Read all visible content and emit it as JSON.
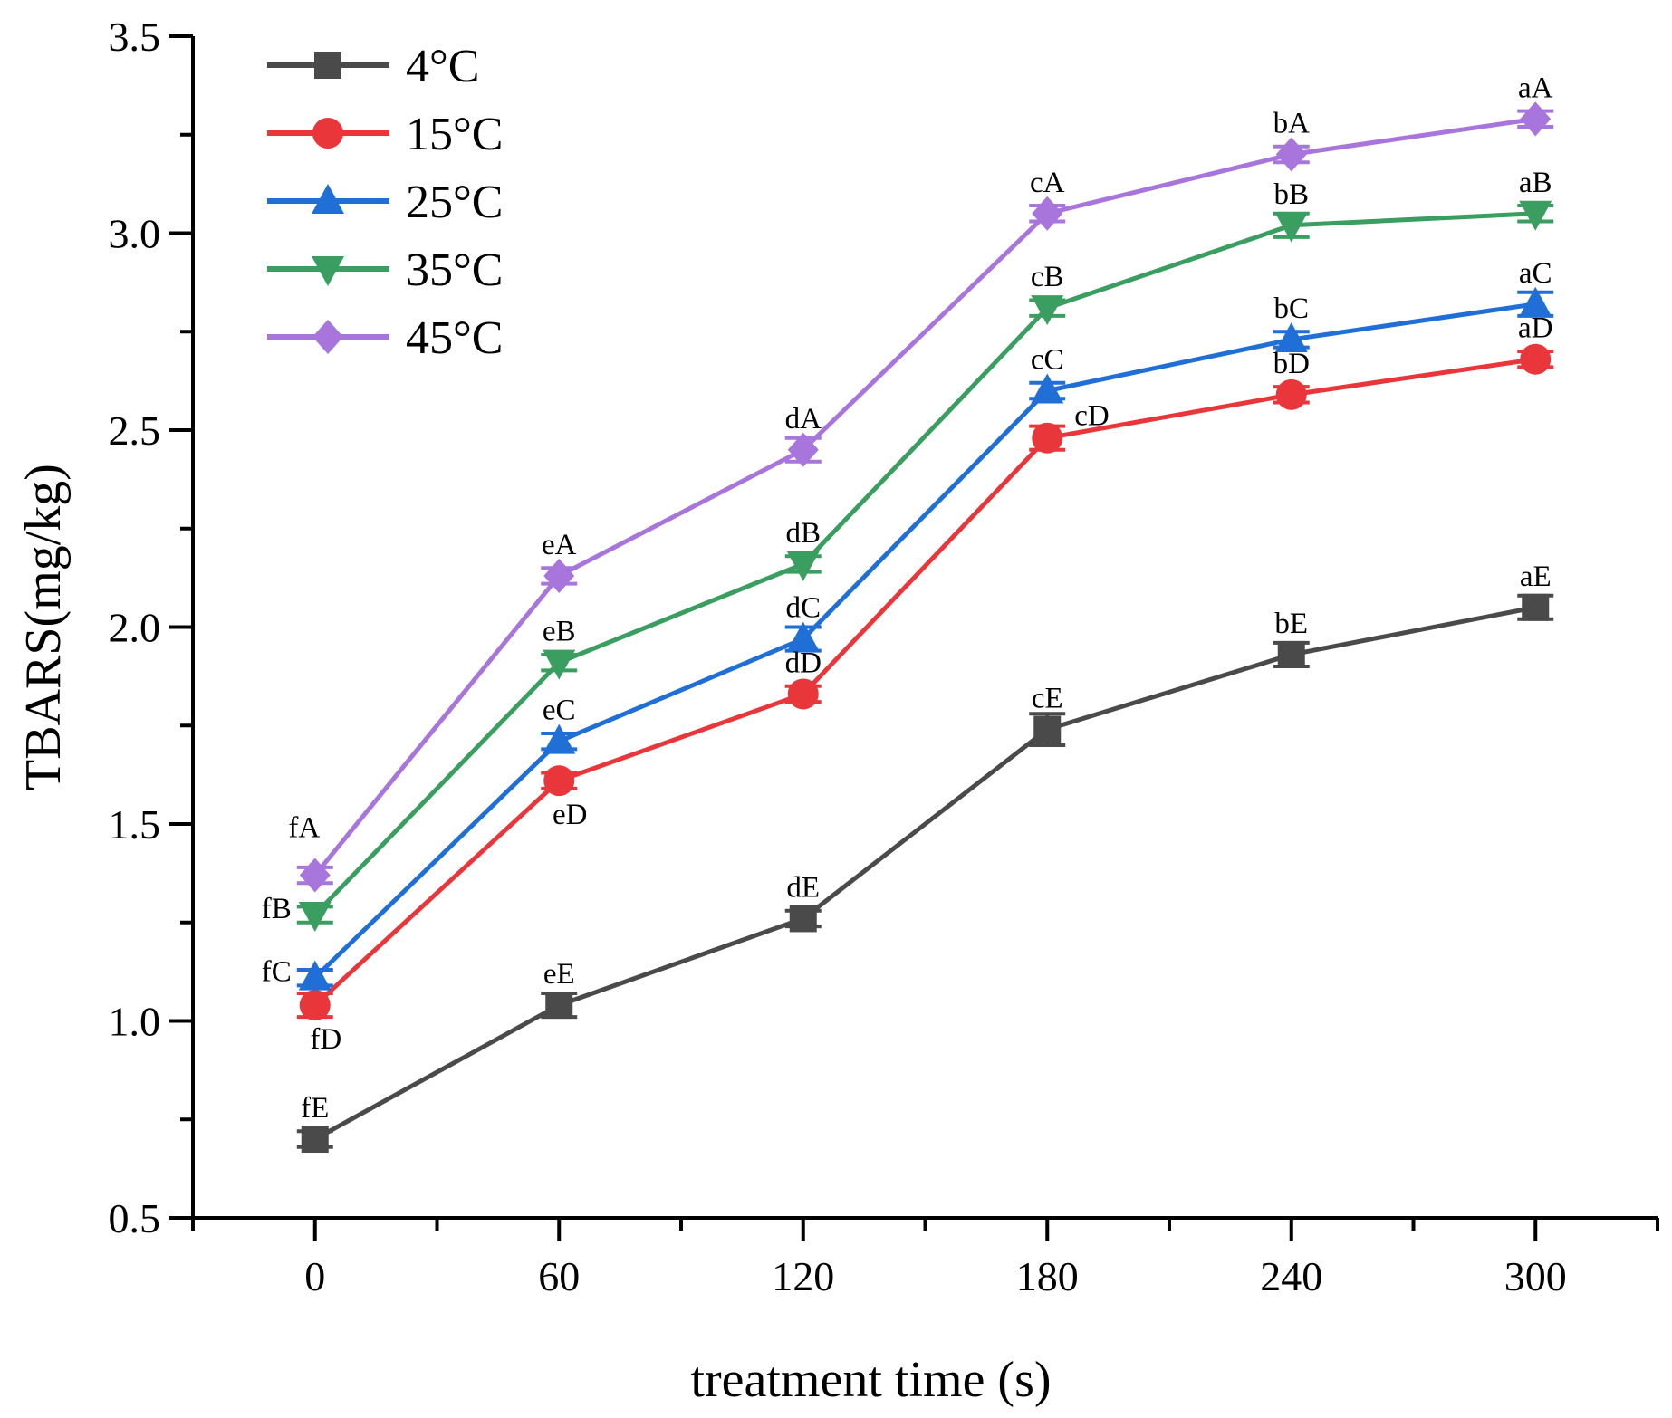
{
  "chart_data": {
    "type": "line",
    "title": "",
    "xlabel": "treatment time (s)",
    "ylabel": "TBARS(mg/kg)",
    "x": [
      0,
      60,
      120,
      180,
      240,
      300
    ],
    "xlim": [
      -30,
      330
    ],
    "ylim": [
      0.5,
      3.5
    ],
    "xticks": [
      0,
      60,
      120,
      180,
      240,
      300
    ],
    "yticks": [
      0.5,
      1.0,
      1.5,
      2.0,
      2.5,
      3.0,
      3.5
    ],
    "xtick_labels": [
      "0",
      "60",
      "120",
      "180",
      "240",
      "300"
    ],
    "ytick_labels": [
      "0.5",
      "1.0",
      "1.5",
      "2.0",
      "2.5",
      "3.0",
      "3.5"
    ],
    "grid": false,
    "legend_position": "top-left",
    "series": [
      {
        "name": "4°C",
        "color": "#4a4a4a",
        "marker": "square",
        "values": [
          0.7,
          1.04,
          1.26,
          1.74,
          1.93,
          2.05
        ],
        "errors": [
          0.02,
          0.03,
          0.02,
          0.04,
          0.03,
          0.03
        ],
        "labels": [
          "fE",
          "eE",
          "dE",
          "cE",
          "bE",
          "aE"
        ],
        "label_placement": [
          "above",
          "above",
          "above",
          "above",
          "above",
          "above"
        ]
      },
      {
        "name": "15°C",
        "color": "#e8363a",
        "marker": "circle",
        "values": [
          1.04,
          1.61,
          1.83,
          2.48,
          2.59,
          2.68
        ],
        "errors": [
          0.03,
          0.02,
          0.02,
          0.03,
          0.02,
          0.02
        ],
        "labels": [
          "fD",
          "eD",
          "dD",
          "cD",
          "bD",
          "aD"
        ],
        "label_placement": [
          "below",
          "below",
          "above",
          "right",
          "above",
          "above"
        ]
      },
      {
        "name": "25°C",
        "color": "#1f6fd6",
        "marker": "triangle-up",
        "values": [
          1.11,
          1.71,
          1.97,
          2.6,
          2.73,
          2.82
        ],
        "errors": [
          0.02,
          0.02,
          0.03,
          0.02,
          0.02,
          0.03
        ],
        "labels": [
          "fC",
          "eC",
          "dC",
          "cC",
          "bC",
          "aC"
        ],
        "label_placement": [
          "left",
          "above",
          "above",
          "above",
          "above",
          "above"
        ]
      },
      {
        "name": "35°C",
        "color": "#3a9e60",
        "marker": "triangle-down",
        "values": [
          1.27,
          1.91,
          2.16,
          2.81,
          3.02,
          3.05
        ],
        "errors": [
          0.02,
          0.02,
          0.02,
          0.02,
          0.03,
          0.02
        ],
        "labels": [
          "fB",
          "eB",
          "dB",
          "cB",
          "bB",
          "aB"
        ],
        "label_placement": [
          "left",
          "above",
          "above",
          "above",
          "above",
          "above"
        ]
      },
      {
        "name": "45°C",
        "color": "#a775dc",
        "marker": "diamond",
        "values": [
          1.37,
          2.13,
          2.45,
          3.05,
          3.2,
          3.29
        ],
        "errors": [
          0.02,
          0.02,
          0.03,
          0.02,
          0.02,
          0.02
        ],
        "labels": [
          "fA",
          "eA",
          "dA",
          "cA",
          "bA",
          "aA"
        ],
        "label_placement": [
          "above-far",
          "above",
          "above",
          "above",
          "above",
          "above"
        ]
      }
    ]
  }
}
